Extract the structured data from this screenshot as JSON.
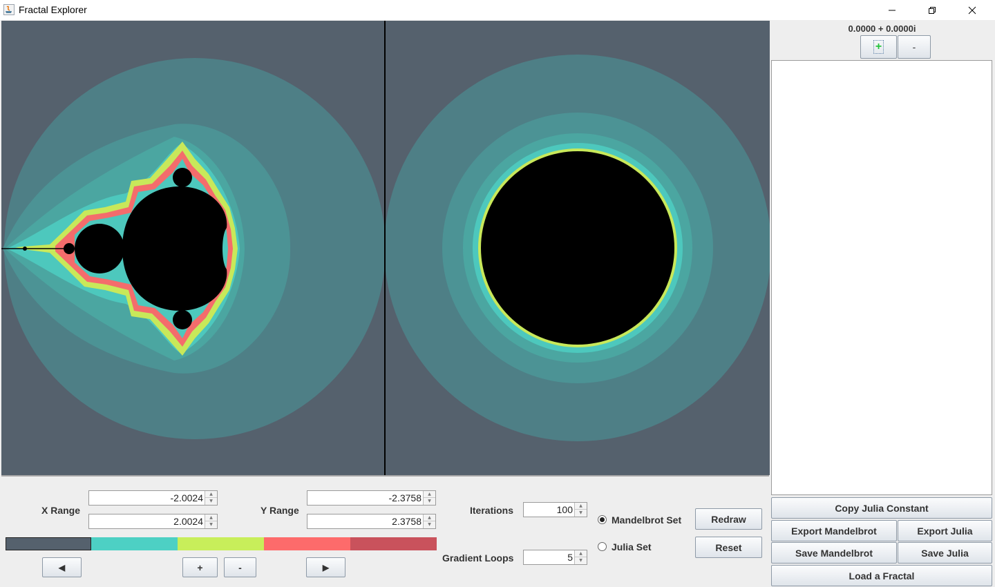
{
  "window": {
    "title": "Fractal Explorer",
    "icons": [
      "java-app-icon",
      "minimize-icon",
      "restore-icon",
      "close-icon"
    ]
  },
  "fractal_views": {
    "left": "Mandelbrot Set",
    "right": "Julia Set",
    "colors": {
      "background": "#55616d",
      "band1": "#4e7f86",
      "band2": "#4c9395",
      "band3": "#4ba6a1",
      "band4": "#4dc8bd",
      "yellow": "#c8e85a",
      "red": "#f46c6c",
      "interior": "#000000"
    }
  },
  "controls": {
    "x_range_label": "X Range",
    "x_min": "-2.0024",
    "x_max": "2.0024",
    "y_range_label": "Y Range",
    "y_min": "-2.3758",
    "y_max": "2.3758",
    "iterations_label": "Iterations",
    "iterations": "100",
    "gradient_loops_label": "Gradient Loops",
    "gradient_loops": "5",
    "gradient_colors": [
      "#55616d",
      "#4dd0c4",
      "#c8ee5a",
      "#fd6b6b",
      "#c9525c"
    ],
    "prev_icon": "◀",
    "next_icon": "▶",
    "add_label": "+",
    "remove_label": "-",
    "mode_mandelbrot": "Mandelbrot Set",
    "mode_julia": "Julia Set",
    "selected_mode": "Mandelbrot Set",
    "redraw": "Redraw",
    "reset": "Reset"
  },
  "side_panel": {
    "julia_constant": "0.0000 + 0.0000i",
    "add_label": "+",
    "remove_label": "-",
    "copy_julia_constant": "Copy Julia Constant",
    "export_mandelbrot": "Export Mandelbrot",
    "export_julia": "Export Julia",
    "save_mandelbrot": "Save Mandelbrot",
    "save_julia": "Save Julia",
    "load_fractal": "Load a Fractal"
  }
}
